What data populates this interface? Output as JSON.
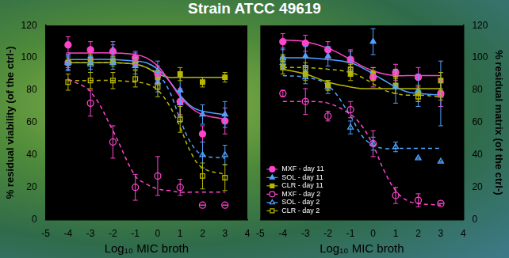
{
  "title": "Strain ATCC 49619",
  "chart_data": [
    {
      "type": "scatter",
      "x_label": "Log₁₀ MIC broth",
      "y_label": "% residual viability (of the ctrl-)",
      "x": [
        -4,
        -3,
        -2,
        -1,
        0,
        1,
        2,
        3
      ],
      "fit_x": [
        -4,
        -3,
        -2,
        -1,
        -0.5,
        0,
        0.5,
        1,
        1.5,
        2,
        3
      ],
      "xlim": [
        -5,
        4
      ],
      "xticks": [
        -5,
        -4,
        -3,
        -2,
        -1,
        0,
        1,
        2,
        3,
        4
      ],
      "ylim": [
        0,
        120
      ],
      "yticks": [
        0,
        20,
        40,
        60,
        80,
        100,
        120
      ],
      "grid": false,
      "legend": false,
      "series": [
        {
          "color": "#ff44cc",
          "marker": "circle",
          "line_style": "solid",
          "values": [
            108,
            105,
            104,
            100,
            90,
            73,
            53,
            61
          ],
          "errors": [
            5,
            5,
            4,
            4,
            5,
            8,
            5,
            8
          ],
          "fit": [
            103,
            103,
            103,
            102,
            100,
            95,
            86,
            76,
            69,
            65,
            62
          ]
        },
        {
          "color": "#4fa3ff",
          "marker": "triangle",
          "line_style": "solid",
          "values": [
            97,
            97,
            97,
            95,
            85,
            80,
            65,
            65
          ],
          "errors": [
            4,
            4,
            4,
            5,
            6,
            8,
            6,
            8
          ],
          "fit": [
            99,
            99,
            99,
            98,
            97,
            93,
            86,
            77,
            70,
            67,
            65
          ]
        },
        {
          "color": "#b8b800",
          "marker": "square",
          "line_style": "solid",
          "values": [
            97,
            99,
            98,
            97,
            88,
            90,
            85,
            88
          ],
          "errors": [
            3,
            3,
            3,
            3,
            4,
            4,
            3,
            3
          ],
          "fit": [
            97,
            97,
            97,
            96,
            94,
            90,
            88,
            88,
            88,
            88,
            88
          ]
        },
        {
          "color": "#ff44cc",
          "marker": "open circle",
          "line_style": "dashed",
          "values": [
            97,
            72,
            48,
            20,
            27,
            20,
            9,
            9
          ],
          "errors": [
            5,
            8,
            10,
            8,
            12,
            5,
            0,
            0
          ],
          "fit": [
            87,
            79,
            55,
            27,
            22,
            19,
            18,
            17,
            17,
            17,
            17
          ]
        },
        {
          "color": "#4fa3ff",
          "marker": "open triangle",
          "line_style": "dashed",
          "values": [
            97,
            96,
            105,
            98,
            92,
            72,
            40,
            40
          ],
          "errors": [
            5,
            5,
            5,
            5,
            6,
            8,
            8,
            6
          ],
          "fit": [
            97,
            97,
            97,
            96,
            94,
            90,
            80,
            62,
            47,
            40,
            38
          ]
        },
        {
          "color": "#b8b800",
          "marker": "open square",
          "line_style": "dashed",
          "values": [
            85,
            86,
            86,
            87,
            82,
            62,
            27,
            26
          ],
          "errors": [
            5,
            5,
            5,
            5,
            6,
            8,
            8,
            8
          ],
          "fit": [
            86,
            86,
            86,
            85,
            84,
            80,
            71,
            57,
            41,
            32,
            28
          ]
        }
      ]
    },
    {
      "type": "scatter",
      "x_label": "Log₁₀ MIC broth",
      "y_label": "% residual matrix (of the ctrl-)",
      "x": [
        -4,
        -3,
        -2,
        -1,
        0,
        1,
        2,
        3
      ],
      "fit_x": [
        -4,
        -3,
        -2,
        -1,
        -0.5,
        0,
        0.5,
        1,
        1.5,
        2,
        3
      ],
      "xlim": [
        -5,
        4
      ],
      "xticks": [
        -5,
        -4,
        -3,
        -2,
        -1,
        0,
        1,
        2,
        3,
        4
      ],
      "ylim": [
        0,
        120
      ],
      "yticks": [
        0,
        20,
        40,
        60,
        80,
        100,
        120
      ],
      "grid": false,
      "legend": "lower left",
      "series": [
        {
          "name": "MXF - day 11",
          "color": "#ff44cc",
          "marker": "circle",
          "line_style": "solid",
          "values": [
            110,
            109,
            105,
            99,
            88,
            91,
            88,
            78
          ],
          "errors": [
            5,
            5,
            5,
            6,
            6,
            5,
            6,
            8
          ],
          "fit": [
            111,
            110,
            106,
            99,
            95,
            92,
            90,
            89,
            89,
            89,
            89
          ]
        },
        {
          "name": "SOL - day 11",
          "color": "#4fa3ff",
          "marker": "triangle",
          "line_style": "solid",
          "values": [
            100,
            101,
            101,
            98,
            110,
            82,
            80,
            78
          ],
          "errors": [
            6,
            6,
            6,
            6,
            8,
            10,
            10,
            20
          ],
          "fit": [
            100,
            100,
            99,
            97,
            94,
            90,
            86,
            82,
            79,
            78,
            77
          ]
        },
        {
          "name": "CLR - day 11",
          "color": "#b8b800",
          "marker": "square",
          "line_style": "solid",
          "values": [
            94,
            90,
            83,
            90,
            90,
            83,
            78,
            86
          ],
          "errors": [
            4,
            4,
            3,
            4,
            4,
            5,
            5,
            5
          ],
          "fit": [
            93,
            90,
            85,
            82,
            81,
            81,
            81,
            81,
            81,
            81,
            81
          ]
        },
        {
          "name": "MXF - day 2",
          "color": "#ff44cc",
          "marker": "open circle",
          "line_style": "dashed",
          "values": [
            78,
            73,
            64,
            68,
            47,
            15,
            12,
            10
          ],
          "errors": [
            2,
            8,
            3,
            5,
            8,
            5,
            4,
            0
          ],
          "fit": [
            73,
            73,
            72,
            65,
            58,
            46,
            30,
            18,
            12,
            10,
            9
          ]
        },
        {
          "name": "SOL - day 2",
          "color": "#4fa3ff",
          "marker": "open triangle",
          "line_style": "dashed",
          "values": [
            97,
            88,
            82,
            57,
            47,
            45,
            38,
            36
          ],
          "errors": [
            4,
            4,
            4,
            4,
            4,
            3,
            0,
            0
          ],
          "fit": [
            89,
            88,
            83,
            64,
            52,
            46,
            44,
            44,
            44,
            44,
            44
          ]
        },
        {
          "name": "CLR - day 2",
          "color": "#b8b800",
          "marker": "open square",
          "line_style": "dashed",
          "values": [
            99,
            94,
            83,
            93,
            89,
            90,
            76,
            77
          ],
          "errors": [
            3,
            3,
            3,
            3,
            3,
            3,
            3,
            3
          ],
          "fit": [
            94,
            94,
            93,
            91,
            88,
            84,
            80,
            78,
            77,
            77,
            76
          ]
        }
      ]
    }
  ]
}
